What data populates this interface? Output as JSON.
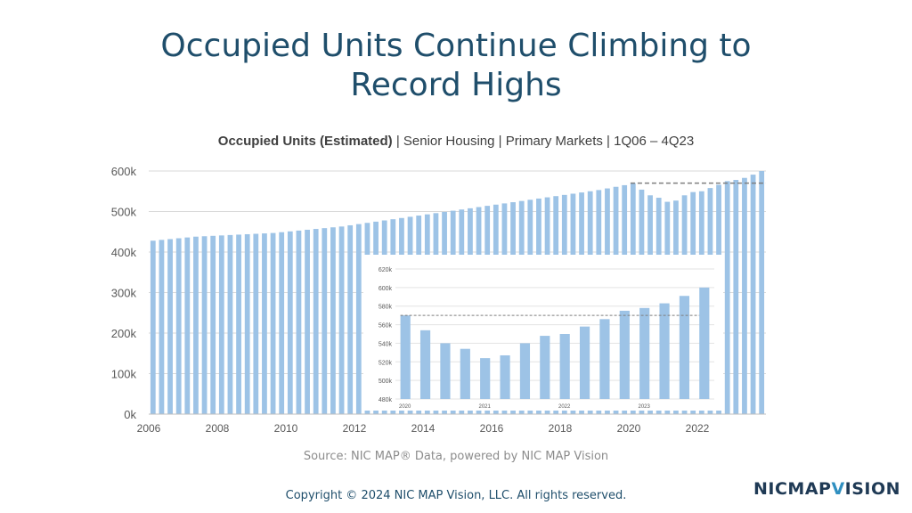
{
  "slide": {
    "title_line1": "Occupied Units Continue Climbing to",
    "title_line2": "Record Highs",
    "source": "Source: NIC MAP® Data, powered by NIC MAP Vision",
    "copyright": "Copyright © 2024 NIC MAP Vision, LLC. All rights reserved.",
    "logo_text": "NICMAP",
    "logo_v": "V",
    "logo_rest": "ISION"
  },
  "colors": {
    "bar": "#9dc3e6",
    "title": "#1f4e6b",
    "grid": "#d9d9d9",
    "axis": "#595959",
    "ref_line": "#7f7f7f"
  },
  "chart_data": [
    {
      "type": "bar",
      "title": "Occupied Units (Estimated)",
      "subtitle": "| Senior Housing | Primary Markets | 1Q06 – 4Q23",
      "ylim": [
        0,
        600000
      ],
      "yticks": [
        0,
        100000,
        200000,
        300000,
        400000,
        500000,
        600000
      ],
      "ytick_labels": [
        "0k",
        "100k",
        "200k",
        "300k",
        "400k",
        "500k",
        "600k"
      ],
      "xtick_labels": [
        "2006",
        "2008",
        "2010",
        "2012",
        "2014",
        "2016",
        "2018",
        "2020",
        "2022"
      ],
      "reference_line": {
        "value": 570000,
        "from_quarter": "1Q20",
        "to_quarter": "4Q23",
        "style": "dashed"
      },
      "x": [
        "1Q06",
        "2Q06",
        "3Q06",
        "4Q06",
        "1Q07",
        "2Q07",
        "3Q07",
        "4Q07",
        "1Q08",
        "2Q08",
        "3Q08",
        "4Q08",
        "1Q09",
        "2Q09",
        "3Q09",
        "4Q09",
        "1Q10",
        "2Q10",
        "3Q10",
        "4Q10",
        "1Q11",
        "2Q11",
        "3Q11",
        "4Q11",
        "1Q12",
        "2Q12",
        "3Q12",
        "4Q12",
        "1Q13",
        "2Q13",
        "3Q13",
        "4Q13",
        "1Q14",
        "2Q14",
        "3Q14",
        "4Q14",
        "1Q15",
        "2Q15",
        "3Q15",
        "4Q15",
        "1Q16",
        "2Q16",
        "3Q16",
        "4Q16",
        "1Q17",
        "2Q17",
        "3Q17",
        "4Q17",
        "1Q18",
        "2Q18",
        "3Q18",
        "4Q18",
        "1Q19",
        "2Q19",
        "3Q19",
        "4Q19",
        "1Q20",
        "2Q20",
        "3Q20",
        "4Q20",
        "1Q21",
        "2Q21",
        "3Q21",
        "4Q21",
        "1Q22",
        "2Q22",
        "3Q22",
        "4Q22",
        "1Q23",
        "2Q23",
        "3Q23",
        "4Q23"
      ],
      "values": [
        428000,
        430000,
        432000,
        434000,
        436000,
        438000,
        439000,
        440000,
        441000,
        442000,
        443000,
        444000,
        445000,
        446000,
        447000,
        449000,
        451000,
        453000,
        455000,
        457000,
        459000,
        461000,
        463000,
        466000,
        469000,
        472000,
        475000,
        478000,
        481000,
        484000,
        487000,
        490000,
        493000,
        496000,
        499000,
        502000,
        505000,
        508000,
        511000,
        514000,
        517000,
        520000,
        523000,
        526000,
        529000,
        532000,
        535000,
        538000,
        541000,
        544000,
        547000,
        550000,
        553000,
        557000,
        561000,
        565000,
        570000,
        554000,
        540000,
        534000,
        524000,
        527000,
        540000,
        548000,
        550000,
        558000,
        566000,
        575000,
        578000,
        583000,
        591000,
        600000
      ]
    },
    {
      "type": "bar",
      "title": "",
      "ylim": [
        480000,
        620000
      ],
      "yticks": [
        480000,
        500000,
        520000,
        540000,
        560000,
        580000,
        600000,
        620000
      ],
      "ytick_labels": [
        "480k",
        "500k",
        "520k",
        "540k",
        "560k",
        "580k",
        "600k",
        "620k"
      ],
      "xtick_labels": [
        "2020",
        "2021",
        "2022",
        "2023"
      ],
      "reference_line": {
        "value": 570000,
        "style": "dashed"
      },
      "x": [
        "1Q20",
        "2Q20",
        "3Q20",
        "4Q20",
        "1Q21",
        "2Q21",
        "3Q21",
        "4Q21",
        "1Q22",
        "2Q22",
        "3Q22",
        "4Q22",
        "1Q23",
        "2Q23",
        "3Q23",
        "4Q23"
      ],
      "values": [
        570000,
        554000,
        540000,
        534000,
        524000,
        527000,
        540000,
        548000,
        550000,
        558000,
        566000,
        575000,
        578000,
        583000,
        591000,
        600000
      ]
    }
  ]
}
